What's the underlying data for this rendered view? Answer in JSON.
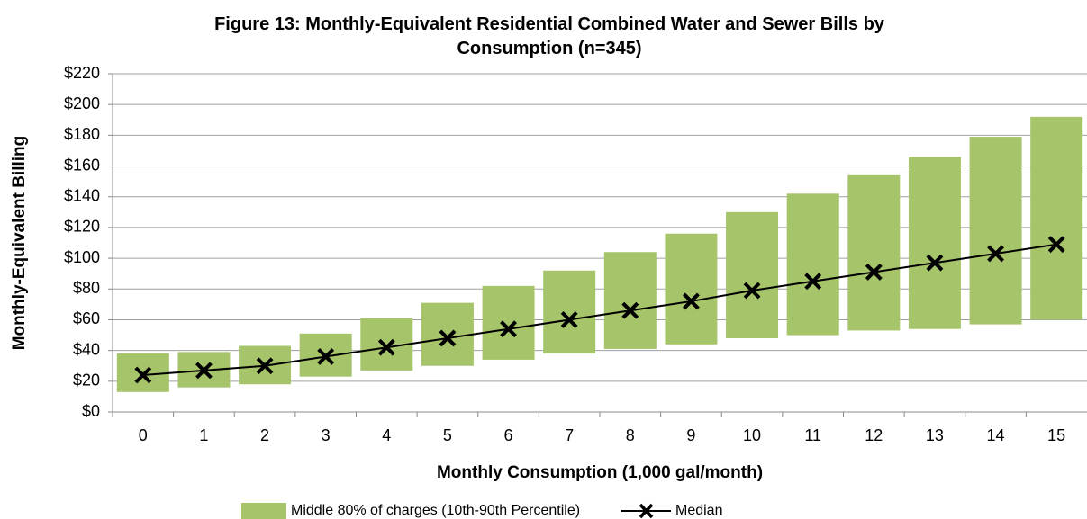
{
  "chart_data": {
    "type": "floating-bar-line",
    "title": "Figure 13: Monthly-Equivalent Residential Combined Water and Sewer Bills by Consumption (n=345)",
    "x_label": "Monthly Consumption (1,000 gal/month)",
    "y_label": "Monthly-Equivalent Billing",
    "categories": [
      "0",
      "1",
      "2",
      "3",
      "4",
      "5",
      "6",
      "7",
      "8",
      "9",
      "10",
      "11",
      "12",
      "13",
      "14",
      "15"
    ],
    "series": [
      {
        "name": "Middle 80% of charges (10th-90th Percentile)",
        "color": "#a6c46a",
        "low": [
          13,
          16,
          18,
          23,
          27,
          30,
          34,
          38,
          41,
          44,
          48,
          50,
          53,
          54,
          57,
          60
        ],
        "high": [
          38,
          39,
          43,
          51,
          61,
          71,
          82,
          92,
          104,
          116,
          130,
          142,
          154,
          166,
          179,
          192
        ]
      },
      {
        "name": "Median",
        "color": "#000000",
        "values": [
          24,
          27,
          30,
          36,
          42,
          48,
          54,
          60,
          66,
          72,
          79,
          85,
          91,
          97,
          103,
          109
        ]
      }
    ],
    "ylim": [
      0,
      220
    ],
    "yticks": [
      {
        "value": 0,
        "label": "$0"
      },
      {
        "value": 20,
        "label": "$20"
      },
      {
        "value": 40,
        "label": "$40"
      },
      {
        "value": 60,
        "label": "$60"
      },
      {
        "value": 80,
        "label": "$80"
      },
      {
        "value": 100,
        "label": "$100"
      },
      {
        "value": 120,
        "label": "$120"
      },
      {
        "value": 140,
        "label": "$140"
      },
      {
        "value": 160,
        "label": "$160"
      },
      {
        "value": 180,
        "label": "$180"
      },
      {
        "value": 200,
        "label": "$200"
      },
      {
        "value": 220,
        "label": "$220"
      }
    ],
    "grid": true
  }
}
